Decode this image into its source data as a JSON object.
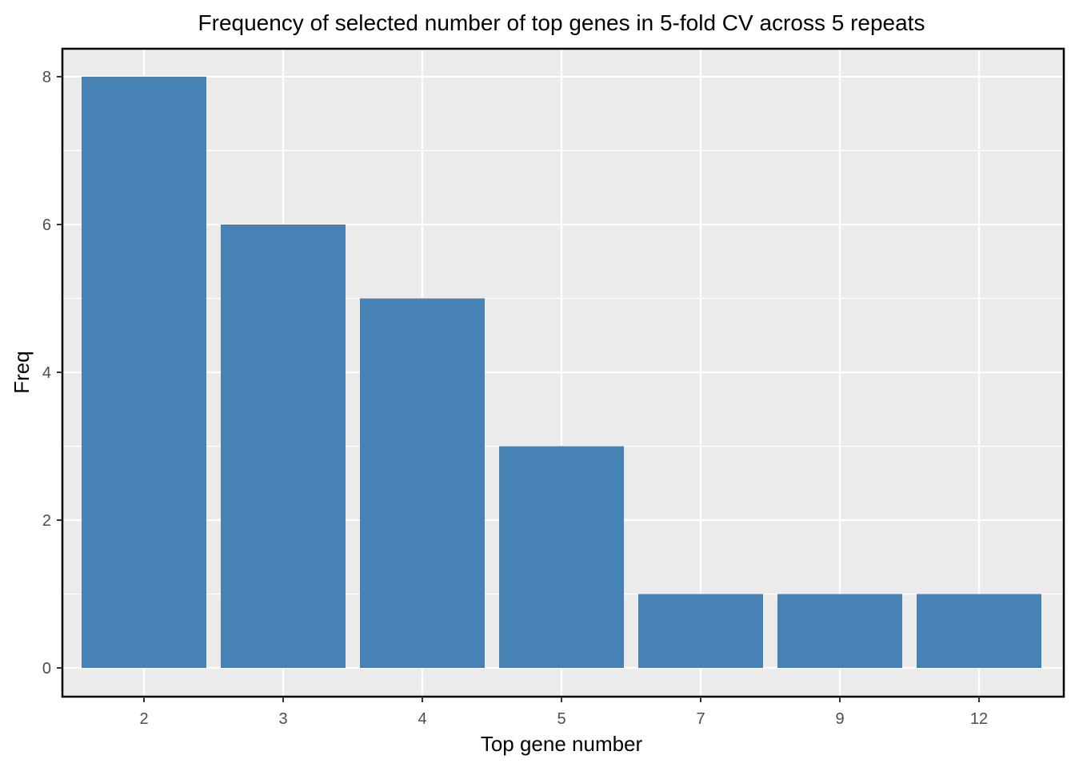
{
  "chart_data": {
    "type": "bar",
    "title": "Frequency of selected number of top genes in 5-fold CV across 5 repeats",
    "xlabel": "Top gene number",
    "ylabel": "Freq",
    "categories": [
      "2",
      "3",
      "4",
      "5",
      "7",
      "9",
      "12"
    ],
    "values": [
      8,
      6,
      5,
      3,
      1,
      1,
      1
    ],
    "ylim": [
      0,
      8.4
    ],
    "yticks": [
      0,
      2,
      4,
      6,
      8
    ],
    "ytick_labels": [
      "0",
      "2",
      "4",
      "6",
      "8"
    ],
    "grid": true,
    "legend": "none",
    "colors": {
      "bar": "#4682b4",
      "panel_background": "#ebebeb",
      "grid": "#ffffff",
      "border": "#000000"
    }
  }
}
